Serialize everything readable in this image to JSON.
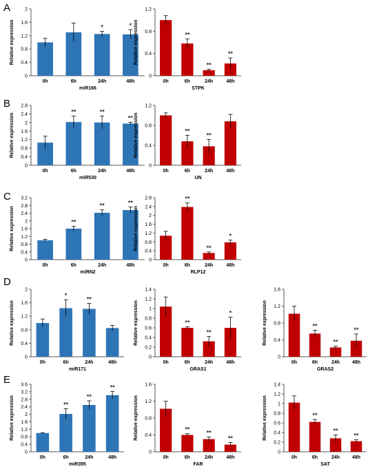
{
  "colors": {
    "blue": "#2E75B6",
    "red": "#C00000",
    "axis": "#555555",
    "text": "#000000"
  },
  "chart_data": [
    {
      "panel": "A",
      "type": "bar",
      "color": "blue",
      "title": "",
      "xlabel": "miR166",
      "ylabel": "Relative expression",
      "categories": [
        "0h",
        "6h",
        "24h",
        "48h"
      ],
      "values": [
        1.0,
        1.3,
        1.25,
        1.24
      ],
      "errors": [
        0.12,
        0.28,
        0.08,
        0.14
      ],
      "significance": [
        "",
        "",
        "*",
        "*"
      ],
      "ylim": [
        0,
        2
      ],
      "yticks": [
        "0",
        "0.4",
        "0.8",
        "1.2",
        "1.6",
        "2"
      ]
    },
    {
      "panel": "A",
      "type": "bar",
      "color": "red",
      "title": "",
      "xlabel": "STPK",
      "ylabel": "Relative expression",
      "categories": [
        "0h",
        "6h",
        "24h",
        "48h"
      ],
      "values": [
        1.0,
        0.58,
        0.1,
        0.22
      ],
      "errors": [
        0.08,
        0.08,
        0.02,
        0.1
      ],
      "significance": [
        "",
        "**",
        "**",
        "**"
      ],
      "ylim": [
        0,
        1.2
      ],
      "yticks": [
        "0",
        "0.4",
        "0.8",
        "1.2"
      ]
    },
    {
      "panel": "B",
      "type": "bar",
      "color": "blue",
      "title": "",
      "xlabel": "miR530",
      "ylabel": "Relative expression",
      "categories": [
        "0h",
        "6h",
        "24h",
        "48h"
      ],
      "values": [
        1.06,
        2.02,
        2.0,
        1.95
      ],
      "errors": [
        0.3,
        0.28,
        0.3,
        0.06
      ],
      "significance": [
        "",
        "**",
        "**",
        "**"
      ],
      "ylim": [
        0,
        2.8
      ],
      "yticks": [
        "0",
        "0.4",
        "0.8",
        "1.2",
        "1.6",
        "2",
        "2.4",
        "2.8"
      ]
    },
    {
      "panel": "B",
      "type": "bar",
      "color": "red",
      "title": "",
      "xlabel": "UN",
      "ylabel": "Relative expression",
      "categories": [
        "0h",
        "6h",
        "24h",
        "48h"
      ],
      "values": [
        1.0,
        0.48,
        0.38,
        0.88
      ],
      "errors": [
        0.05,
        0.12,
        0.14,
        0.14
      ],
      "significance": [
        "",
        "**",
        "**",
        ""
      ],
      "ylim": [
        0,
        1.2
      ],
      "yticks": [
        "0",
        "0.4",
        "0.8",
        "1.2"
      ]
    },
    {
      "panel": "C",
      "type": "bar",
      "color": "blue",
      "title": "",
      "xlabel": "miRN2",
      "ylabel": "Relative expression",
      "categories": [
        "0h",
        "6h",
        "24h",
        "48h"
      ],
      "values": [
        1.0,
        1.6,
        2.42,
        2.56
      ],
      "errors": [
        0.05,
        0.12,
        0.15,
        0.16
      ],
      "significance": [
        "",
        "**",
        "**",
        "**"
      ],
      "ylim": [
        0,
        3.2
      ],
      "yticks": [
        "0",
        "0.4",
        "0.8",
        "1.2",
        "1.6",
        "2",
        "2.4",
        "2.8",
        "3.2"
      ]
    },
    {
      "panel": "C",
      "type": "bar",
      "color": "red",
      "title": "",
      "xlabel": "RLP12",
      "ylabel": "Relative expression",
      "categories": [
        "0h",
        "6h",
        "24h",
        "48h"
      ],
      "values": [
        1.08,
        2.38,
        0.3,
        0.78
      ],
      "errors": [
        0.2,
        0.18,
        0.05,
        0.1
      ],
      "significance": [
        "",
        "**",
        "**",
        "*"
      ],
      "ylim": [
        0,
        2.8
      ],
      "yticks": [
        "0",
        "0.4",
        "0.8",
        "1.2",
        "1.6",
        "2",
        "2.4",
        "2.8"
      ]
    },
    {
      "panel": "D",
      "type": "bar",
      "color": "blue",
      "title": "",
      "xlabel": "miR171",
      "ylabel": "Relative expression",
      "categories": [
        "0h",
        "6h",
        "24h",
        "48h"
      ],
      "values": [
        1.0,
        1.44,
        1.42,
        0.85
      ],
      "errors": [
        0.12,
        0.25,
        0.16,
        0.08
      ],
      "significance": [
        "",
        "*",
        "**",
        ""
      ],
      "ylim": [
        0,
        2
      ],
      "yticks": [
        "0",
        "0.4",
        "0.8",
        "1.2",
        "1.6",
        "2"
      ]
    },
    {
      "panel": "D",
      "type": "bar",
      "color": "red",
      "title": "",
      "xlabel": "GRAS1",
      "ylabel": "Relative expression",
      "categories": [
        "0h",
        "6h",
        "24h",
        "48h"
      ],
      "values": [
        1.04,
        0.6,
        0.32,
        0.6
      ],
      "errors": [
        0.2,
        0.02,
        0.1,
        0.22
      ],
      "significance": [
        "",
        "**",
        "**",
        "*"
      ],
      "ylim": [
        0,
        1.4
      ],
      "yticks": [
        "0",
        "0.2",
        "0.4",
        "0.6",
        "0.8",
        "1",
        "1.2",
        "1.4"
      ]
    },
    {
      "panel": "D",
      "type": "bar",
      "color": "red",
      "title": "",
      "xlabel": "GRAS2",
      "ylabel": "Relative expression",
      "categories": [
        "0h",
        "6h",
        "24h",
        "48h"
      ],
      "values": [
        1.02,
        0.55,
        0.22,
        0.38
      ],
      "errors": [
        0.18,
        0.08,
        0.03,
        0.16
      ],
      "significance": [
        "",
        "**",
        "**",
        "**"
      ],
      "ylim": [
        0,
        1.6
      ],
      "yticks": [
        "0",
        "0.4",
        "0.8",
        "1.2",
        "1.6"
      ]
    },
    {
      "panel": "E",
      "type": "bar",
      "color": "blue",
      "title": "",
      "xlabel": "miR395",
      "ylabel": "Relative expression",
      "categories": [
        "0h",
        "6h",
        "24h",
        "48h"
      ],
      "values": [
        1.0,
        2.02,
        2.5,
        3.02
      ],
      "errors": [
        0.02,
        0.28,
        0.22,
        0.2
      ],
      "significance": [
        "",
        "**",
        "**",
        "**"
      ],
      "ylim": [
        0,
        3.6
      ],
      "yticks": [
        "0",
        "0.4",
        "0.8",
        "1.2",
        "1.6",
        "2",
        "2.4",
        "2.8",
        "3.2",
        "3.6"
      ]
    },
    {
      "panel": "E",
      "type": "bar",
      "color": "red",
      "title": "",
      "xlabel": "FAR",
      "ylabel": "Relative expression",
      "categories": [
        "0h",
        "6h",
        "24h",
        "48h"
      ],
      "values": [
        1.02,
        0.4,
        0.3,
        0.17
      ],
      "errors": [
        0.18,
        0.03,
        0.05,
        0.05
      ],
      "significance": [
        "",
        "**",
        "**",
        "**"
      ],
      "ylim": [
        0,
        1.6
      ],
      "yticks": [
        "0",
        "0.4",
        "0.8",
        "1.2",
        "1.6"
      ]
    },
    {
      "panel": "E",
      "type": "bar",
      "color": "red",
      "title": "",
      "xlabel": "SAT",
      "ylabel": "Relative expression",
      "categories": [
        "0h",
        "6h",
        "24h",
        "48h"
      ],
      "values": [
        1.02,
        0.62,
        0.28,
        0.22
      ],
      "errors": [
        0.14,
        0.05,
        0.07,
        0.03
      ],
      "significance": [
        "",
        "**",
        "**",
        "**"
      ],
      "ylim": [
        0,
        1.4
      ],
      "yticks": [
        "0",
        "0.2",
        "0.4",
        "0.6",
        "0.8",
        "1",
        "1.2",
        "1.4"
      ]
    }
  ]
}
